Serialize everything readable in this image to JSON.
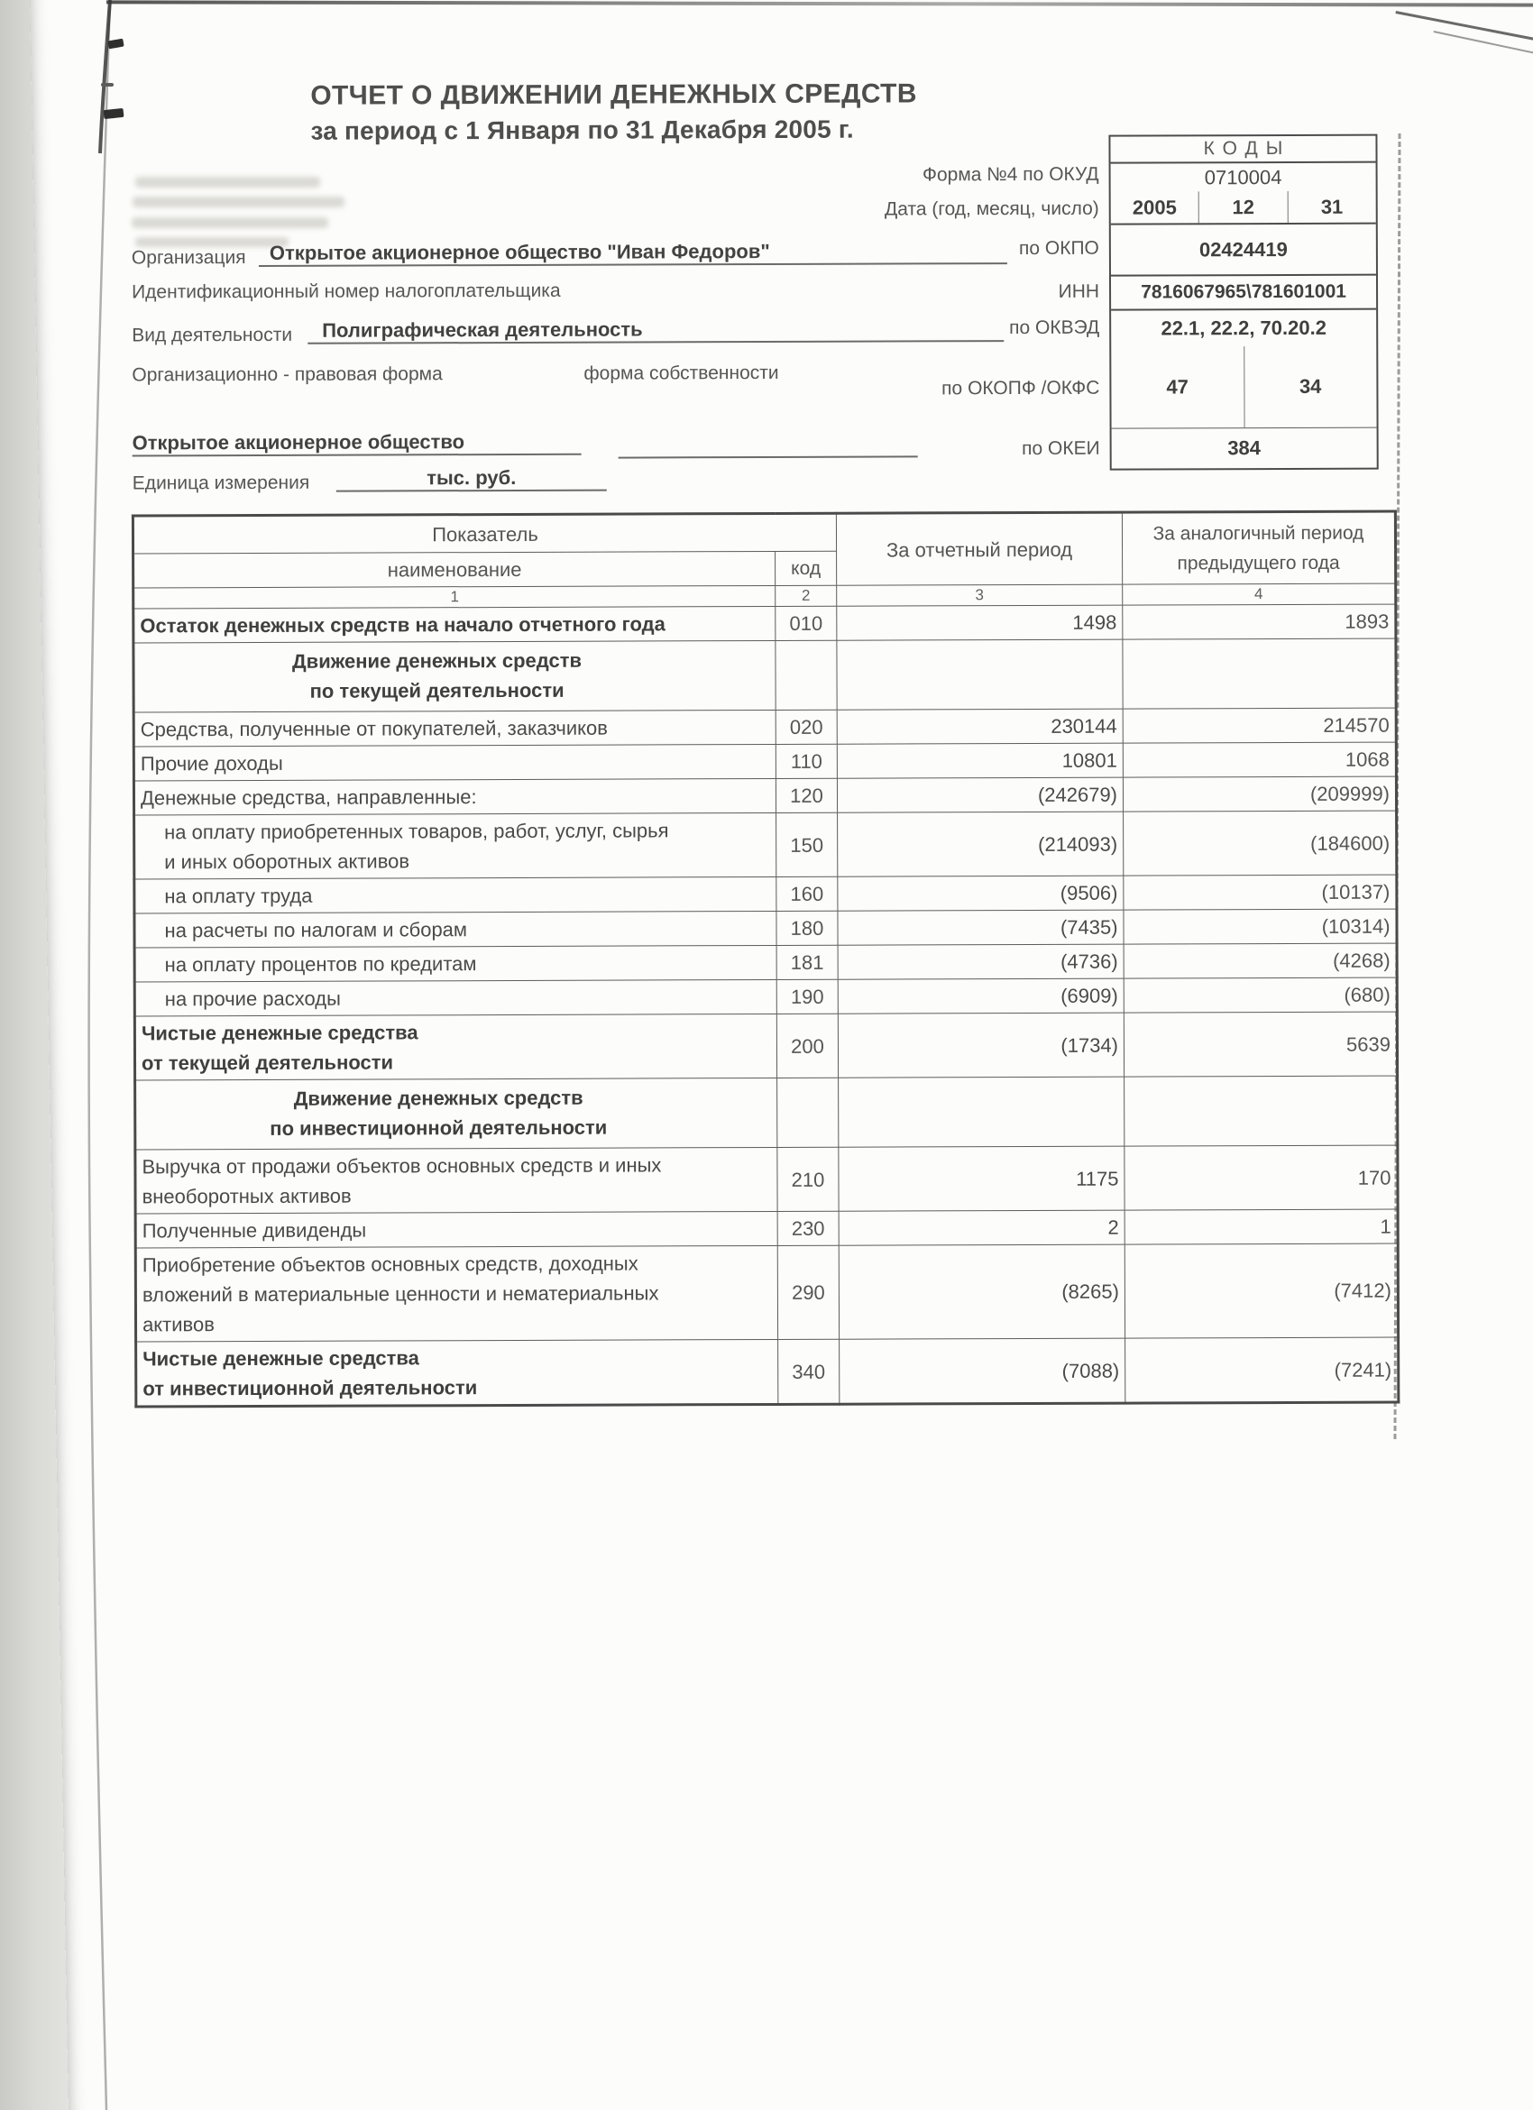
{
  "document": {
    "title": "ОТЧЕТ О ДВИЖЕНИИ ДЕНЕЖНЫХ СРЕДСТВ",
    "subtitle": "за  период с 1 Января по 31 Декабря 2005 г."
  },
  "org": {
    "org_label": "Организация",
    "org_value": "Открытое акционерное общество \"Иван Федоров\"",
    "taxpayer_label": "Идентификационный номер налогоплательщика",
    "activity_label": "Вид деятельности",
    "activity_value": "Полиграфическая деятельность",
    "legal_form_label": "Организационно - правовая форма",
    "ownership_label": "форма собственности",
    "legal_form_value": "Открытое акционерное общество",
    "unit_label": "Единица измерения",
    "unit_value": "тыс. руб."
  },
  "form_meta": {
    "codes_header": "КОДЫ",
    "okud_label": "Форма №4 по ОКУД",
    "okud_value": "0710004",
    "date_label": "Дата (год, месяц, число)",
    "date_year": "2005",
    "date_month": "12",
    "date_day": "31",
    "okpo_label": "по ОКПО",
    "okpo_value": "02424419",
    "inn_label": "ИНН",
    "inn_value": "7816067965\\781601001",
    "okved_label": "по ОКВЭД",
    "okved_value": "22.1, 22.2, 70.20.2",
    "okopf_label": "по ОКОПФ /ОКФС",
    "okopf_value": "47",
    "okfs_value": "34",
    "okei_label": "по ОКЕИ",
    "okei_value": "384"
  },
  "table": {
    "header": {
      "indicator": "Показатель",
      "name": "наименование",
      "code": "код",
      "reporting_period": "За отчетный период",
      "previous_period": "За аналогичный период предыдущего года",
      "col_numbers": [
        "1",
        "2",
        "3",
        "4"
      ]
    },
    "rows": [
      {
        "type": "data",
        "bold": true,
        "name": "Остаток денежных средств на начало отчетного года",
        "code": "010",
        "current": "1498",
        "previous": "1893"
      },
      {
        "type": "section",
        "name": "Движение денежных средств\nпо текущей деятельности",
        "code": "",
        "current": "",
        "previous": ""
      },
      {
        "type": "data",
        "name": "Средства, полученные от покупателей, заказчиков",
        "code": "020",
        "current": "230144",
        "previous": "214570"
      },
      {
        "type": "data",
        "name": "Прочие доходы",
        "code": "110",
        "current": "10801",
        "previous": "1068"
      },
      {
        "type": "data",
        "name": "Денежные средства, направленные:",
        "code": "120",
        "current": "(242679)",
        "previous": "(209999)"
      },
      {
        "type": "data",
        "indent": true,
        "name": "на оплату приобретенных товаров, работ, услуг, сырья\nи иных оборотных активов",
        "code": "150",
        "current": "(214093)",
        "previous": "(184600)"
      },
      {
        "type": "data",
        "indent": true,
        "name": "на оплату труда",
        "code": "160",
        "current": "(9506)",
        "previous": "(10137)"
      },
      {
        "type": "data",
        "indent": true,
        "name": "на расчеты по налогам и сборам",
        "code": "180",
        "current": "(7435)",
        "previous": "(10314)"
      },
      {
        "type": "data",
        "indent": true,
        "name": "на оплату процентов по кредитам",
        "code": "181",
        "current": "(4736)",
        "previous": "(4268)"
      },
      {
        "type": "data",
        "indent": true,
        "name": "на прочие расходы",
        "code": "190",
        "current": "(6909)",
        "previous": "(680)"
      },
      {
        "type": "data",
        "bold": true,
        "name": "Чистые денежные средства\nот текущей деятельности",
        "code": "200",
        "current": "(1734)",
        "previous": "5639"
      },
      {
        "type": "section",
        "name": "Движение денежных средств\nпо инвестиционной деятельности",
        "code": "",
        "current": "",
        "previous": ""
      },
      {
        "type": "data",
        "name": "Выручка от продажи объектов основных средств и иных\nвнеоборотных активов",
        "code": "210",
        "current": "1175",
        "previous": "170"
      },
      {
        "type": "data",
        "name": "Полученные дивиденды",
        "code": "230",
        "current": "2",
        "previous": "1"
      },
      {
        "type": "data",
        "name": "Приобретение объектов основных средств, доходных\nвложений в материальные ценности и нематериальных\nактивов",
        "code": "290",
        "current": "(8265)",
        "previous": "(7412)"
      },
      {
        "type": "data",
        "bold": true,
        "name": "Чистые денежные средства\nот инвестиционной деятельности",
        "code": "340",
        "current": "(7088)",
        "previous": "(7241)"
      }
    ]
  }
}
